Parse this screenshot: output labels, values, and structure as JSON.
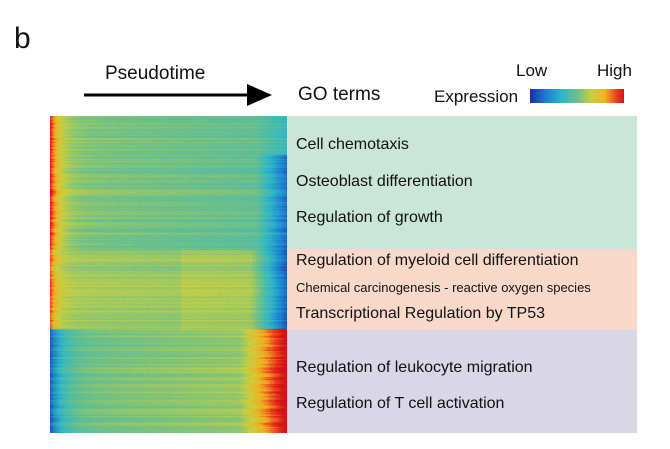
{
  "panel_letter": "b",
  "pseudotime_label": "Pseudotime",
  "go_terms_label": "GO terms",
  "legend": {
    "low": "Low",
    "high": "High",
    "title": "Expression"
  },
  "colors": {
    "cluster1_band": "#c9e6d9",
    "cluster2_band": "#f8d9c9",
    "cluster3_band": "#d9d6e6",
    "low": "#1a2fa8",
    "mid": "#6cc08a",
    "high": "#d81010"
  },
  "clusters": [
    {
      "terms": [
        "Cell chemotaxis",
        "Osteoblast differentiation",
        "Regulation of growth"
      ]
    },
    {
      "terms": [
        "Regulation of myeloid cell differentiation",
        "Chemical carcinogenesis - reactive oxygen species",
        "Transcriptional Regulation by TP53"
      ]
    },
    {
      "terms": [
        "Regulation of leukocyte migration",
        "Regulation of T cell activation"
      ]
    }
  ]
}
